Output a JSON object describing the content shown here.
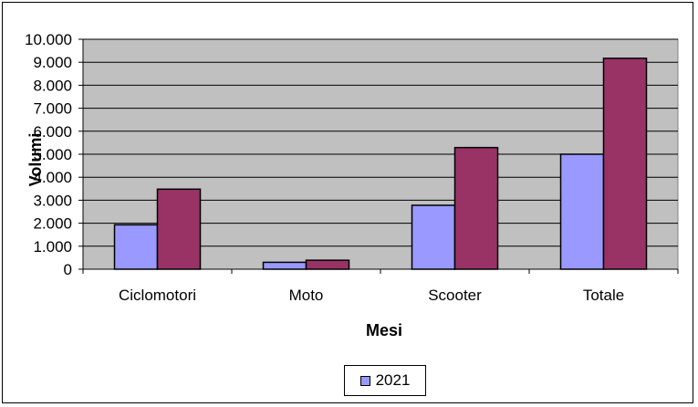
{
  "chart_data": {
    "type": "bar",
    "categories": [
      "Ciclomotori",
      "Moto",
      "Scooter",
      "Totale"
    ],
    "series": [
      {
        "name": "2021",
        "values": [
          1930,
          300,
          2780,
          5000
        ],
        "color": "#9999FF"
      },
      {
        "name": "",
        "values": [
          3480,
          390,
          5290,
          9170
        ],
        "color": "#993366"
      }
    ],
    "xlabel": "Mesi",
    "ylabel": "Volumi",
    "ylim": [
      0,
      10000
    ],
    "yticks": [
      0,
      1000,
      2000,
      3000,
      4000,
      5000,
      6000,
      7000,
      8000,
      9000,
      10000
    ],
    "ytick_labels": [
      "0",
      "1.000",
      "2.000",
      "3.000",
      "4.000",
      "5.000",
      "6.000",
      "7.000",
      "8.000",
      "9.000",
      "10.000"
    ],
    "grid": true,
    "plot_background": "#C0C0C0",
    "legend": {
      "entries": [
        "2021"
      ],
      "position": "bottom"
    }
  }
}
